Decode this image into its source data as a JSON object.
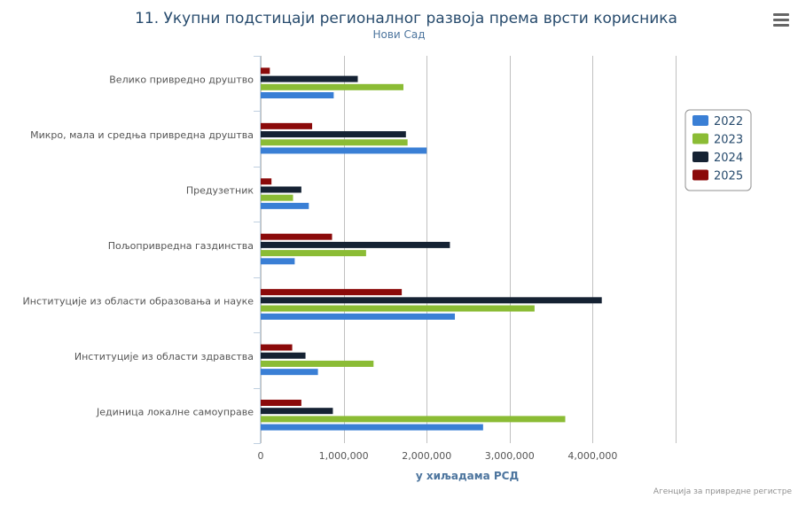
{
  "chart_data": {
    "type": "bar",
    "orientation": "horizontal",
    "title": "11. Укупни подстицаји регионалног развоја према врсти корисника",
    "subtitle": "Нови Сад",
    "xlabel": "у хиљадама РСД",
    "ylabel": "",
    "xlim": [
      0,
      5000000
    ],
    "x_ticks": [
      0,
      1000000,
      2000000,
      3000000,
      4000000
    ],
    "x_tick_labels": [
      "0",
      "1,000,000",
      "2,000,000",
      "3,000,000",
      "4,000,000"
    ],
    "grid": true,
    "legend_position": "right",
    "credits": "Агенција за привредне регистре",
    "categories": [
      "Велико привредно друштво",
      "Микро, мала и средња привредна друштва",
      "Предузетник",
      "Пољопривредна газдинства",
      "Институције из области образовања и науке",
      "Институције из области здравства",
      "Јединица локалне самоуправе"
    ],
    "series": [
      {
        "name": "2022",
        "color": "#3a7fd5",
        "values": [
          880000,
          2000000,
          580000,
          410000,
          2340000,
          690000,
          2680000
        ]
      },
      {
        "name": "2023",
        "color": "#8bbc35",
        "values": [
          1720000,
          1770000,
          390000,
          1270000,
          3300000,
          1360000,
          3670000
        ]
      },
      {
        "name": "2024",
        "color": "#152233",
        "values": [
          1170000,
          1750000,
          490000,
          2280000,
          4110000,
          540000,
          870000
        ]
      },
      {
        "name": "2025",
        "color": "#8b0a0a",
        "values": [
          110000,
          620000,
          130000,
          860000,
          1700000,
          380000,
          490000
        ]
      }
    ]
  },
  "menu": {
    "icon": "hamburger-menu-icon"
  }
}
